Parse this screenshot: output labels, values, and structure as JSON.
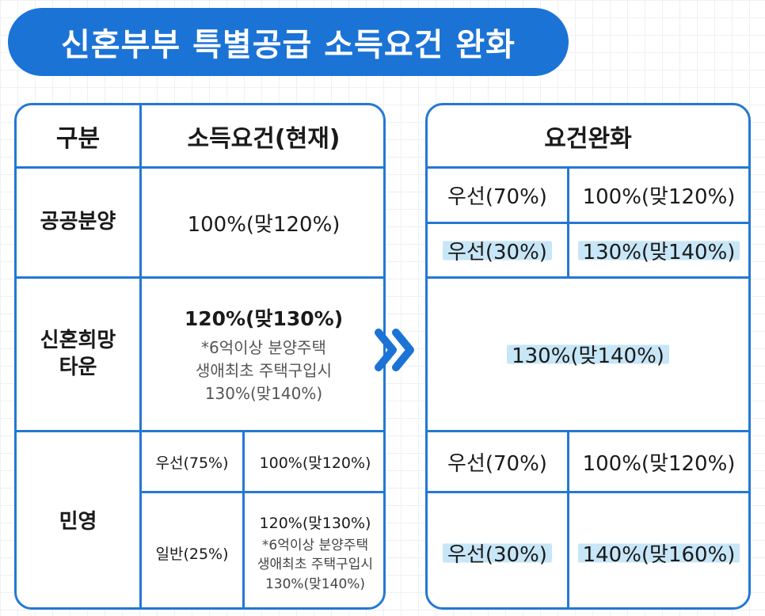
{
  "title": "신혼부부 특별공급 소득요건 완화",
  "current": {
    "header_category": "구분",
    "header_income": "소득요건(현재)",
    "rows": {
      "public": {
        "label": "공공분양",
        "value": "100%(맞120%)"
      },
      "hope": {
        "label_line1": "신혼희망",
        "label_line2": "타운",
        "value": "120%(맞130%)",
        "note_line1": "*6억이상 분양주택",
        "note_line2": "생애최초 주택구입시",
        "note_line3": "130%(맞140%)"
      },
      "private": {
        "label": "민영",
        "priority_label": "우선(75%)",
        "priority_value": "100%(맞120%)",
        "general_label": "일반(25%)",
        "general_value": "120%(맞130%)",
        "general_note_line1": "*6억이상 분양주택",
        "general_note_line2": "생애최초 주택구입시",
        "general_note_line3": "130%(맞140%)"
      }
    }
  },
  "arrow_icon": "double-chevron-right-icon",
  "relaxed": {
    "header": "요건완화",
    "public": [
      {
        "label": "우선(70%)",
        "value": "100%(맞120%)"
      },
      {
        "label": "우선(30%)",
        "value": "130%(맞140%)"
      }
    ],
    "hope": {
      "value": "130%(맞140%)"
    },
    "private": [
      {
        "label": "우선(70%)",
        "value": "100%(맞120%)"
      },
      {
        "label": "우선(30%)",
        "value": "140%(맞160%)"
      }
    ]
  },
  "colors": {
    "accent": "#1b73d6",
    "border": "#2478d4",
    "highlight": "#c7e6f7"
  }
}
